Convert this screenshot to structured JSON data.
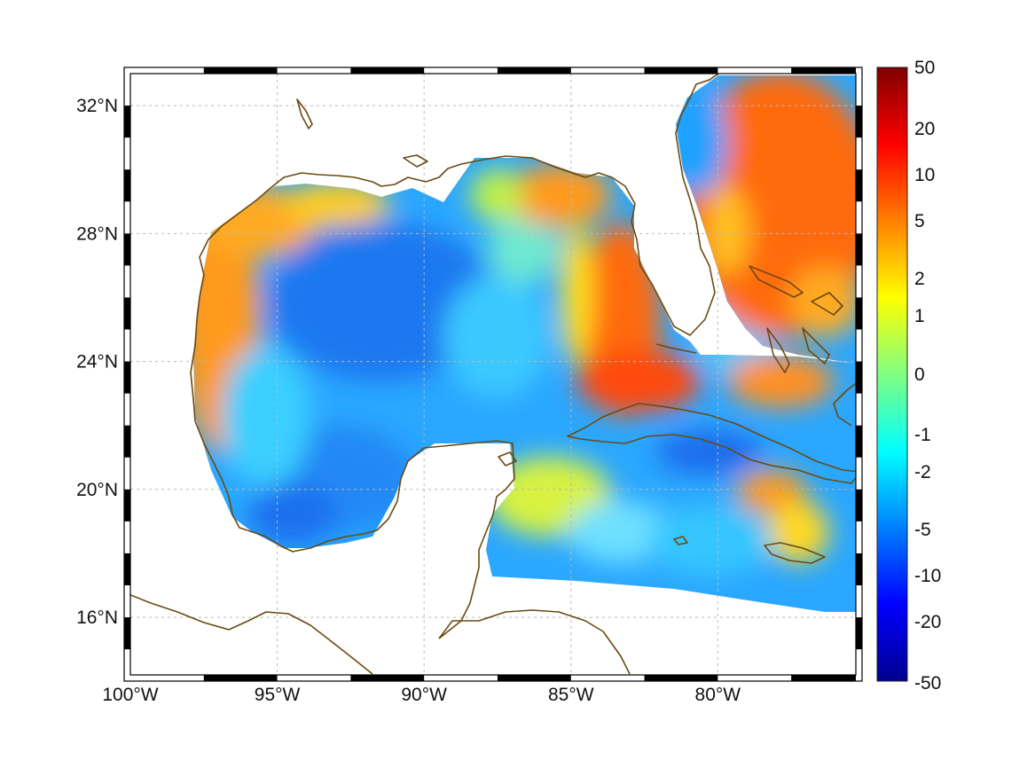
{
  "map": {
    "lon_ticks": [
      {
        "value": -100,
        "label": "100°W"
      },
      {
        "value": -95,
        "label": "95°W"
      },
      {
        "value": -90,
        "label": "90°W"
      },
      {
        "value": -85,
        "label": "85°W"
      },
      {
        "value": -80,
        "label": "80°W"
      }
    ],
    "lat_ticks": [
      {
        "value": 32,
        "label": "32°N"
      },
      {
        "value": 28,
        "label": "28°N"
      },
      {
        "value": 24,
        "label": "24°N"
      },
      {
        "value": 20,
        "label": "20°N"
      },
      {
        "value": 16,
        "label": "16°N"
      }
    ],
    "extent": {
      "lon_min": -100,
      "lon_max": -75.3,
      "lat_min": 14.2,
      "lat_max": 33
    },
    "colorbar": {
      "labels": [
        "50",
        "20",
        "10",
        "5",
        "2",
        "1",
        "0",
        "-1",
        "-2",
        "-5",
        "-10",
        "-20",
        "-50"
      ],
      "colors": [
        "#7f0000",
        "#ff0000",
        "#ff8000",
        "#ffff00",
        "#80ff80",
        "#00ffff",
        "#0080ff",
        "#0000ff",
        "#00008f"
      ]
    },
    "coast_color": "#6b4a12"
  }
}
